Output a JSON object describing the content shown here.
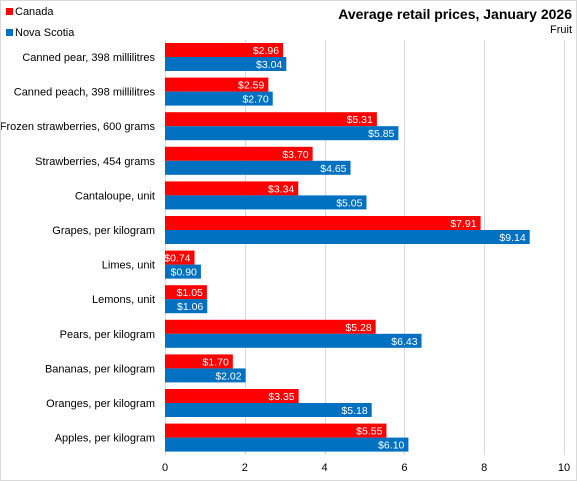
{
  "chart_data": {
    "type": "bar",
    "orientation": "horizontal",
    "title": "Average retail prices, January 2026",
    "subtitle": "Fruit",
    "xlabel": "",
    "ylabel": "",
    "xlim": [
      0,
      10
    ],
    "xticks": [
      0,
      2,
      4,
      6,
      8,
      10
    ],
    "grid": true,
    "legend_position": "top-left",
    "categories": [
      "Canned pear, 398 millilitres",
      "Canned peach, 398 millilitres",
      "Frozen strawberries, 600 grams",
      "Strawberries, 454 grams",
      "Cantaloupe, unit",
      "Grapes, per kilogram",
      "Limes, unit",
      "Lemons, unit",
      "Pears, per kilogram",
      "Bananas, per kilogram",
      "Oranges, per kilogram",
      "Apples, per kilogram"
    ],
    "series": [
      {
        "name": "Canada",
        "color": "#ff0000",
        "values": [
          2.96,
          2.59,
          5.31,
          3.7,
          3.34,
          7.91,
          0.74,
          1.05,
          5.28,
          1.7,
          3.35,
          5.55
        ],
        "labels": [
          "$2.96",
          "$2.59",
          "$5.31",
          "$3.70",
          "$3.34",
          "$7.91",
          "$0.74",
          "$1.05",
          "$5.28",
          "$1.70",
          "$3.35",
          "$5.55"
        ]
      },
      {
        "name": "Nova Scotia",
        "color": "#0070c0",
        "values": [
          3.04,
          2.7,
          5.85,
          4.65,
          5.05,
          9.14,
          0.9,
          1.06,
          6.43,
          2.02,
          5.18,
          6.1
        ],
        "labels": [
          "$3.04",
          "$2.70",
          "$5.85",
          "$4.65",
          "$5.05",
          "$9.14",
          "$0.90",
          "$1.06",
          "$6.43",
          "$2.02",
          "$5.18",
          "$6.10"
        ]
      }
    ]
  }
}
